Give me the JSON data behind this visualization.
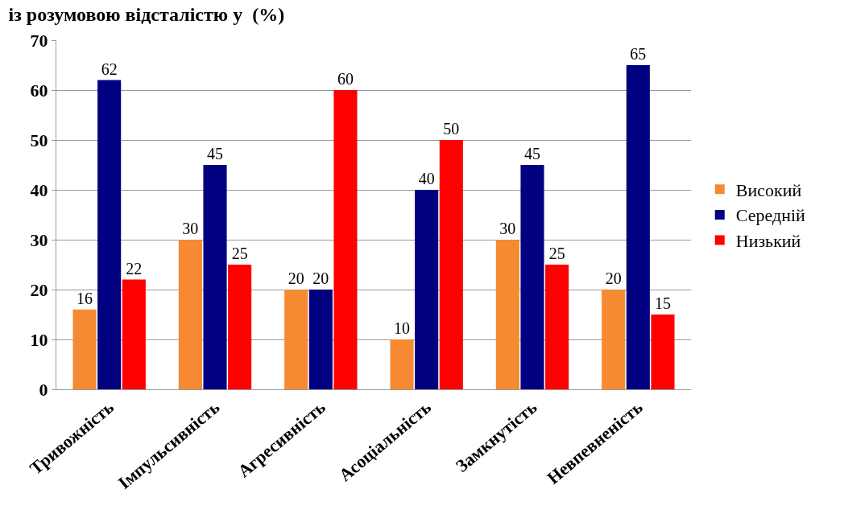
{
  "chart_data": {
    "type": "bar",
    "title": "із розумовою відсталістю у  (%)",
    "categories": [
      "Тривожність",
      "Імпульсивність",
      "Агресивність",
      "Асоціальність",
      "Замкнутість",
      "Невпевненість"
    ],
    "series": [
      {
        "name": "Високий",
        "color": "#f58a32",
        "values": [
          16,
          30,
          20,
          10,
          30,
          20
        ]
      },
      {
        "name": "Середній",
        "color": "#000080",
        "values": [
          62,
          45,
          20,
          40,
          45,
          65
        ]
      },
      {
        "name": "Низький",
        "color": "#ff0000",
        "values": [
          22,
          25,
          60,
          50,
          25,
          15
        ]
      }
    ],
    "ylim": [
      0,
      70
    ],
    "yticks": [
      0,
      10,
      20,
      30,
      40,
      50,
      60,
      70
    ],
    "grid": "y",
    "legend": "right",
    "data_labels": true
  }
}
